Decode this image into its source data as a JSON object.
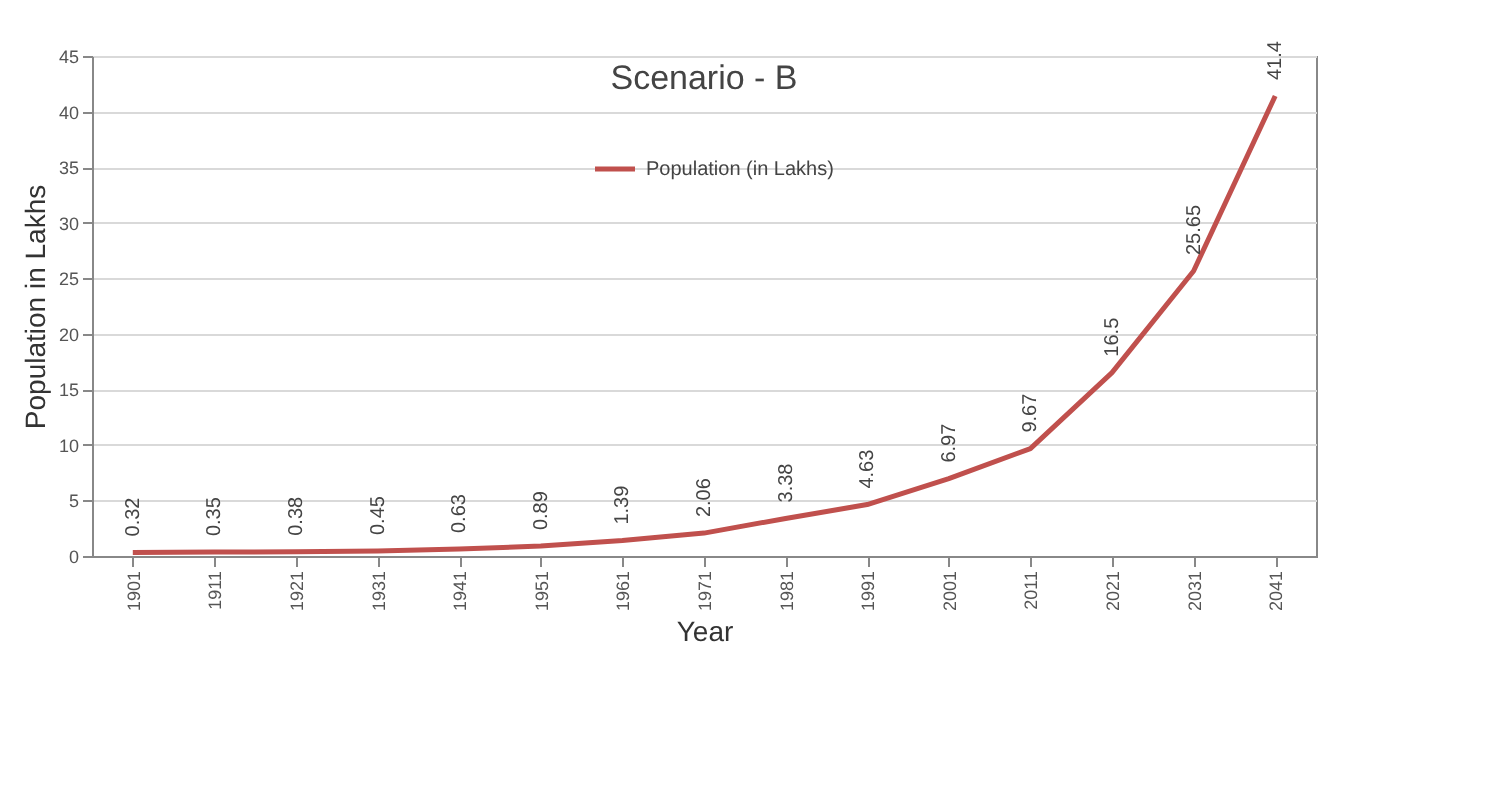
{
  "chart_data": {
    "type": "line",
    "title": "Scenario - B",
    "xlabel": "Year",
    "ylabel": "Population in Lakhs",
    "categories": [
      "1901",
      "1911",
      "1921",
      "1931",
      "1941",
      "1951",
      "1961",
      "1971",
      "1981",
      "1991",
      "2001",
      "2011",
      "2021",
      "2031",
      "2041"
    ],
    "series": [
      {
        "name": "Population  (in Lakhs)",
        "color": "#c0504d",
        "values": [
          0.32,
          0.35,
          0.38,
          0.45,
          0.63,
          0.89,
          1.39,
          2.06,
          3.38,
          4.63,
          6.97,
          9.67,
          16.5,
          25.65,
          41.4
        ]
      }
    ],
    "ylim": [
      0,
      45
    ],
    "yticks": [
      0,
      5,
      10,
      15,
      20,
      25,
      30,
      35,
      40,
      45
    ],
    "grid": "y",
    "legend": "top",
    "data_labels": true,
    "marker": "none",
    "line_style": "solid"
  }
}
